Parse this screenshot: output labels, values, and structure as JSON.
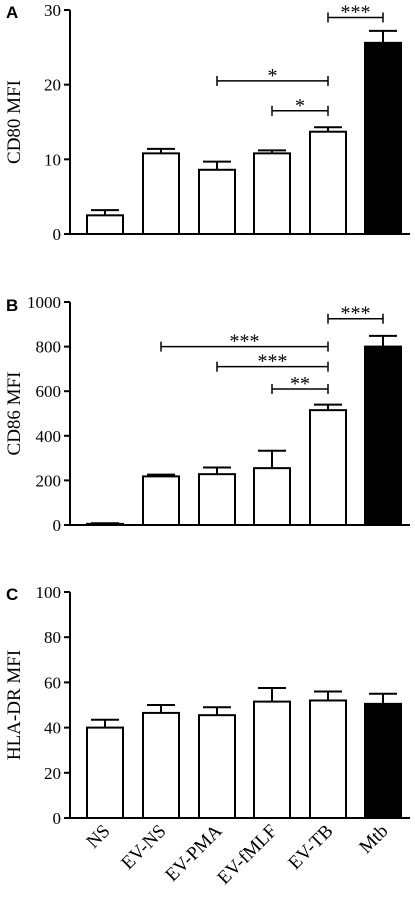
{
  "chart_data": [
    {
      "type": "bar",
      "panel": "A",
      "ylabel": "CD80 MFI",
      "ylim": [
        0,
        30
      ],
      "yticks": [
        0,
        10,
        20,
        30
      ],
      "categories": [
        "NS",
        "EV-NS",
        "EV-PMA",
        "EV-fMLF",
        "EV-TB",
        "Mtb"
      ],
      "values": [
        2.5,
        10.8,
        8.6,
        10.8,
        13.7,
        25.6
      ],
      "errors": [
        0.7,
        0.6,
        1.1,
        0.4,
        0.6,
        1.6
      ],
      "fill": [
        "#ffffff",
        "#ffffff",
        "#ffffff",
        "#ffffff",
        "#ffffff",
        "#000000"
      ],
      "significance": [
        {
          "from": "EV-TB",
          "to": "Mtb",
          "label": "***",
          "y": 29.0
        },
        {
          "from": "EV-PMA",
          "to": "EV-TB",
          "label": "*",
          "y": 20.5
        },
        {
          "from": "EV-fMLF",
          "to": "EV-TB",
          "label": "*",
          "y": 16.5
        }
      ]
    },
    {
      "type": "bar",
      "panel": "B",
      "ylabel": "CD86 MFI",
      "ylim": [
        0,
        1000
      ],
      "yticks": [
        0,
        200,
        400,
        600,
        800,
        1000
      ],
      "categories": [
        "NS",
        "EV-NS",
        "EV-PMA",
        "EV-fMLF",
        "EV-TB",
        "Mtb"
      ],
      "values": [
        5,
        218,
        228,
        255,
        515,
        800
      ],
      "errors": [
        3,
        8,
        30,
        78,
        25,
        48
      ],
      "fill": [
        "#ffffff",
        "#ffffff",
        "#ffffff",
        "#ffffff",
        "#ffffff",
        "#000000"
      ],
      "significance": [
        {
          "from": "EV-TB",
          "to": "Mtb",
          "label": "***",
          "y": 925
        },
        {
          "from": "EV-NS",
          "to": "EV-TB",
          "label": "***",
          "y": 800
        },
        {
          "from": "EV-PMA",
          "to": "EV-TB",
          "label": "***",
          "y": 710
        },
        {
          "from": "EV-fMLF",
          "to": "EV-TB",
          "label": "**",
          "y": 610
        }
      ]
    },
    {
      "type": "bar",
      "panel": "C",
      "ylabel": "HLA-DR MFI",
      "ylim": [
        0,
        100
      ],
      "yticks": [
        0,
        20,
        40,
        60,
        80,
        100
      ],
      "categories": [
        "NS",
        "EV-NS",
        "EV-PMA",
        "EV-fMLF",
        "EV-TB",
        "Mtb"
      ],
      "values": [
        40,
        46.5,
        45.5,
        51.5,
        52,
        50.5
      ],
      "errors": [
        3.5,
        3.5,
        3.5,
        6,
        4,
        4.5
      ],
      "fill": [
        "#ffffff",
        "#ffffff",
        "#ffffff",
        "#ffffff",
        "#ffffff",
        "#000000"
      ],
      "significance": []
    }
  ]
}
